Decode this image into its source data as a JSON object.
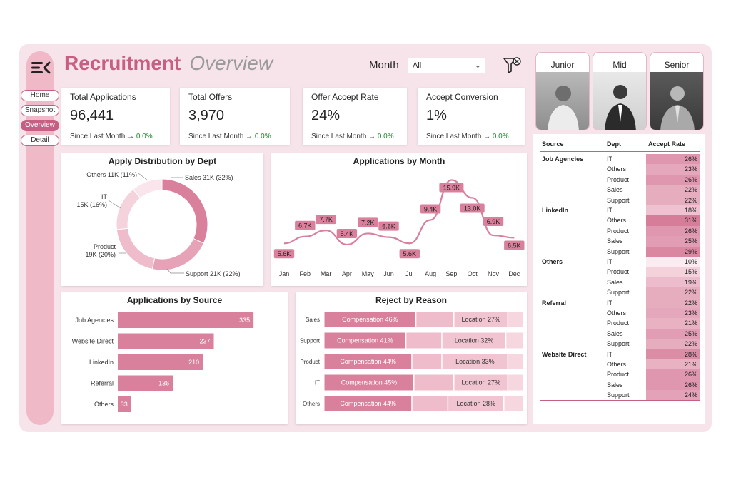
{
  "header": {
    "title": "Recruitment",
    "subtitle": "Overview"
  },
  "nav": {
    "items": [
      "Home",
      "Snapshot",
      "Overview",
      "Detail"
    ],
    "active": "Overview"
  },
  "filters": {
    "month_label": "Month",
    "month_value": "All"
  },
  "kpis": [
    {
      "label": "Total Applications",
      "value": "96,441",
      "since": "Since Last Month →",
      "change": "0.0%"
    },
    {
      "label": "Total Offers",
      "value": "3,970",
      "since": "Since Last Month →",
      "change": "0.0%"
    },
    {
      "label": "Offer Accept Rate",
      "value": "24%",
      "since": "Since Last Month →",
      "change": "0.0%"
    },
    {
      "label": "Accept Conversion",
      "value": "1%",
      "since": "Since Last Month →",
      "change": "0.0%"
    }
  ],
  "levels": [
    "Junior",
    "Mid",
    "Senior"
  ],
  "colors": {
    "accent": "#c65f83",
    "bar": "#d9809c",
    "light": "#efb9c8",
    "bg": "#f7e4ea"
  },
  "chart_data": [
    {
      "type": "pie",
      "title": "Apply Distribution by Dept",
      "labels": [
        "Sales 31K (32%)",
        "Support 21K (22%)",
        "Product 19K (20%)",
        "IT 15K (16%)",
        "Others 11K (11%)"
      ],
      "values": [
        32,
        22,
        20,
        16,
        11
      ],
      "colors": [
        "#d9809c",
        "#e6a3b7",
        "#eebccb",
        "#f5d3dd",
        "#fae5ec"
      ]
    },
    {
      "type": "line",
      "title": "Applications by Month",
      "categories": [
        "Jan",
        "Feb",
        "Mar",
        "Apr",
        "May",
        "Jun",
        "Jul",
        "Aug",
        "Sep",
        "Oct",
        "Nov",
        "Dec"
      ],
      "values": [
        5.6,
        6.7,
        7.7,
        5.4,
        7.2,
        6.6,
        5.6,
        9.4,
        15.9,
        13.0,
        6.9,
        6.5
      ],
      "labels": [
        "5.6K",
        "6.7K",
        "7.7K",
        "5.4K",
        "7.2K",
        "6.6K",
        "5.6K",
        "9.4K",
        "15.9K",
        "13.0K",
        "6.9K",
        "6.5K"
      ],
      "ylim": [
        4,
        17
      ]
    },
    {
      "type": "bar",
      "title": "Applications by Source",
      "orientation": "horizontal",
      "categories": [
        "Job Agencies",
        "Website Direct",
        "LinkedIn",
        "Referral",
        "Others"
      ],
      "values": [
        335,
        237,
        210,
        136,
        33
      ],
      "xlim": [
        0,
        370
      ]
    },
    {
      "type": "bar",
      "title": "Reject by Reason",
      "orientation": "horizontal-stacked-100",
      "categories": [
        "Sales",
        "Support",
        "Product",
        "IT",
        "Others"
      ],
      "series": [
        {
          "name": "Compensation",
          "values": [
            46,
            41,
            44,
            45,
            44
          ],
          "labels": [
            "Compensation 46%",
            "Compensation 41%",
            "Compensation 44%",
            "Compensation 45%",
            "Compensation 44%"
          ]
        },
        {
          "name": "Other",
          "values": [
            19,
            18,
            15,
            20,
            18
          ]
        },
        {
          "name": "Location",
          "values": [
            27,
            32,
            33,
            27,
            28
          ],
          "labels": [
            "Location 27%",
            "Location 32%",
            "Location 33%",
            "Location 27%",
            "Location 28%"
          ]
        },
        {
          "name": "Remaining",
          "values": [
            8,
            9,
            8,
            8,
            10
          ]
        }
      ]
    },
    {
      "type": "table",
      "title": "Accept Rate by Source and Dept",
      "headers": [
        "Source",
        "Dept",
        "Accept Rate"
      ],
      "groups": [
        {
          "source": "Job Agencies",
          "rows": [
            [
              "IT",
              "26%"
            ],
            [
              "Others",
              "23%"
            ],
            [
              "Product",
              "26%"
            ],
            [
              "Sales",
              "22%"
            ],
            [
              "Support",
              "22%"
            ]
          ]
        },
        {
          "source": "LinkedIn",
          "rows": [
            [
              "IT",
              "18%"
            ],
            [
              "Others",
              "31%"
            ],
            [
              "Product",
              "26%"
            ],
            [
              "Sales",
              "25%"
            ],
            [
              "Support",
              "29%"
            ]
          ]
        },
        {
          "source": "Others",
          "rows": [
            [
              "IT",
              "10%"
            ],
            [
              "Product",
              "15%"
            ],
            [
              "Sales",
              "19%"
            ],
            [
              "Support",
              "22%"
            ]
          ]
        },
        {
          "source": "Referral",
          "rows": [
            [
              "IT",
              "22%"
            ],
            [
              "Others",
              "23%"
            ],
            [
              "Product",
              "21%"
            ],
            [
              "Sales",
              "25%"
            ],
            [
              "Support",
              "22%"
            ]
          ]
        },
        {
          "source": "Website Direct",
          "rows": [
            [
              "IT",
              "28%"
            ],
            [
              "Others",
              "21%"
            ],
            [
              "Product",
              "26%"
            ],
            [
              "Sales",
              "26%"
            ],
            [
              "Support",
              "24%"
            ]
          ]
        }
      ]
    }
  ]
}
